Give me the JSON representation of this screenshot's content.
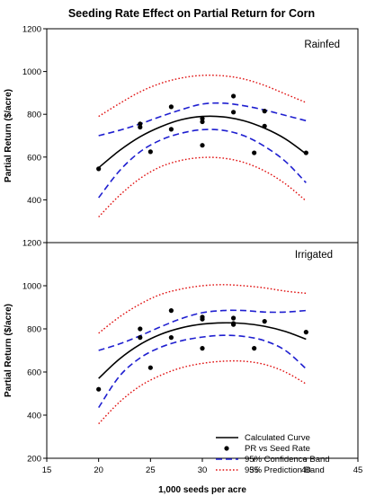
{
  "chart_data": {
    "type": "scatter",
    "title": "Seeding Rate Effect on Partial Return for Corn",
    "xlabel": "1,000 seeds per acre",
    "xlim": [
      15,
      45
    ],
    "xticks": [
      15,
      20,
      25,
      30,
      35,
      40,
      45
    ],
    "legend": {
      "placement": "bottom-right of lower panel",
      "entries": [
        {
          "name": "Calculated Curve",
          "style": "solid",
          "color": "#000000"
        },
        {
          "name": "PR vs Seed Rate",
          "style": "marker",
          "color": "#000000"
        },
        {
          "name": "95% Confidence Band",
          "style": "dashed",
          "color": "#1f1fd0"
        },
        {
          "name": "95% Prediction Band",
          "style": "dotted",
          "color": "#e01010"
        }
      ]
    },
    "panels": [
      {
        "label": "Rainfed",
        "ylabel": "Partial Return ($/acre)",
        "ylim": [
          200,
          1200
        ],
        "yticks": [
          200,
          400,
          600,
          800,
          1000,
          1200
        ],
        "points": {
          "x": [
            20,
            24,
            24,
            25,
            27,
            27,
            30,
            30,
            30,
            33,
            33,
            35,
            36,
            36,
            40
          ],
          "y": [
            545,
            740,
            755,
            625,
            730,
            835,
            765,
            780,
            655,
            885,
            810,
            620,
            745,
            815,
            620
          ]
        },
        "curve": {
          "x": [
            20,
            22,
            24,
            26,
            28,
            30,
            32,
            34,
            36,
            38,
            40
          ],
          "y": [
            550,
            630,
            695,
            742,
            775,
            790,
            788,
            770,
            735,
            685,
            615
          ]
        },
        "confidence_upper": {
          "x": [
            20,
            22,
            24,
            26,
            28,
            30,
            32,
            34,
            36,
            38,
            40
          ],
          "y": [
            700,
            725,
            755,
            790,
            822,
            848,
            852,
            840,
            820,
            795,
            770
          ]
        },
        "confidence_lower": {
          "x": [
            20,
            22,
            24,
            26,
            28,
            30,
            32,
            34,
            36,
            38,
            40
          ],
          "y": [
            410,
            535,
            625,
            680,
            712,
            728,
            725,
            700,
            650,
            580,
            480
          ]
        },
        "prediction_upper": {
          "x": [
            20,
            22,
            24,
            26,
            28,
            30,
            32,
            34,
            36,
            38,
            40
          ],
          "y": [
            790,
            850,
            905,
            945,
            970,
            982,
            980,
            965,
            935,
            895,
            855
          ]
        },
        "prediction_lower": {
          "x": [
            20,
            22,
            24,
            26,
            28,
            30,
            32,
            34,
            36,
            38,
            40
          ],
          "y": [
            320,
            420,
            500,
            555,
            585,
            598,
            595,
            575,
            535,
            475,
            395
          ]
        }
      },
      {
        "label": "Irrigated",
        "ylabel": "Partial Return ($/acre)",
        "ylim": [
          200,
          1200
        ],
        "yticks": [
          200,
          400,
          600,
          800,
          1000,
          1200
        ],
        "points": {
          "x": [
            20,
            24,
            24,
            25,
            27,
            27,
            30,
            30,
            30,
            33,
            33,
            33,
            35,
            36,
            40
          ],
          "y": [
            520,
            760,
            800,
            620,
            760,
            885,
            855,
            845,
            710,
            850,
            820,
            825,
            710,
            835,
            785
          ]
        },
        "curve": {
          "x": [
            20,
            22,
            24,
            26,
            28,
            30,
            32,
            34,
            36,
            38,
            40
          ],
          "y": [
            570,
            660,
            728,
            775,
            805,
            822,
            828,
            825,
            812,
            788,
            752
          ]
        },
        "confidence_upper": {
          "x": [
            20,
            22,
            24,
            26,
            28,
            30,
            32,
            34,
            36,
            38,
            40
          ],
          "y": [
            700,
            730,
            768,
            810,
            848,
            875,
            885,
            885,
            878,
            878,
            885
          ]
        },
        "confidence_lower": {
          "x": [
            20,
            22,
            24,
            26,
            28,
            30,
            32,
            34,
            36,
            38,
            40
          ],
          "y": [
            435,
            580,
            665,
            715,
            745,
            762,
            770,
            765,
            745,
            700,
            615
          ]
        },
        "prediction_upper": {
          "x": [
            20,
            22,
            24,
            26,
            28,
            30,
            32,
            34,
            36,
            38,
            40
          ],
          "y": [
            780,
            855,
            915,
            960,
            985,
            1000,
            1005,
            1000,
            990,
            975,
            965
          ]
        },
        "prediction_lower": {
          "x": [
            20,
            22,
            24,
            26,
            28,
            30,
            32,
            34,
            36,
            38,
            40
          ],
          "y": [
            360,
            460,
            535,
            585,
            620,
            640,
            650,
            650,
            635,
            600,
            545
          ]
        }
      }
    ]
  }
}
